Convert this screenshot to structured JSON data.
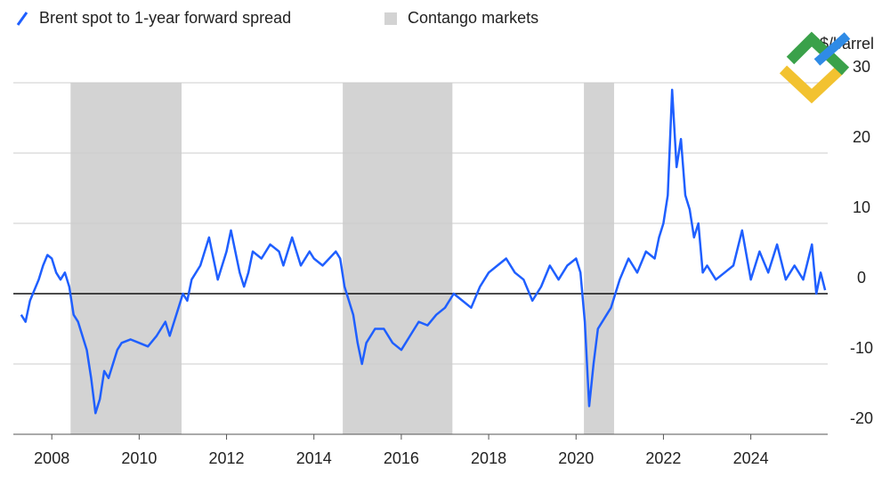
{
  "chart_data": {
    "type": "line",
    "y_label": "$/barrel",
    "xlim": [
      2007.12,
      2025.76
    ],
    "xticks": [
      2008,
      2010,
      2012,
      2014,
      2016,
      2018,
      2020,
      2022,
      2024
    ],
    "ylim": [
      -20,
      30
    ],
    "yticks": [
      -20,
      -10,
      0,
      10,
      20,
      30
    ],
    "grid": true,
    "shaded_regions": {
      "name": "Contango markets",
      "color": "#d3d3d3",
      "ranges": [
        [
          2008.43,
          2010.97
        ],
        [
          2014.66,
          2017.17
        ],
        [
          2020.18,
          2020.87
        ]
      ]
    },
    "series": [
      {
        "name": "Brent spot to 1-year forward spread",
        "color": "#1f5fff",
        "x": [
          2007.3,
          2007.4,
          2007.5,
          2007.7,
          2007.8,
          2007.9,
          2008.0,
          2008.1,
          2008.2,
          2008.3,
          2008.4,
          2008.5,
          2008.6,
          2008.7,
          2008.8,
          2008.9,
          2009.0,
          2009.1,
          2009.2,
          2009.3,
          2009.4,
          2009.5,
          2009.6,
          2009.8,
          2010.0,
          2010.2,
          2010.4,
          2010.6,
          2010.7,
          2010.8,
          2010.9,
          2011.0,
          2011.1,
          2011.2,
          2011.4,
          2011.6,
          2011.7,
          2011.8,
          2011.9,
          2012.0,
          2012.1,
          2012.2,
          2012.3,
          2012.4,
          2012.5,
          2012.6,
          2012.8,
          2013.0,
          2013.2,
          2013.3,
          2013.5,
          2013.7,
          2013.9,
          2014.0,
          2014.2,
          2014.5,
          2014.6,
          2014.7,
          2014.8,
          2014.9,
          2015.0,
          2015.1,
          2015.2,
          2015.4,
          2015.6,
          2015.8,
          2016.0,
          2016.2,
          2016.4,
          2016.6,
          2016.8,
          2017.0,
          2017.2,
          2017.4,
          2017.6,
          2017.8,
          2018.0,
          2018.2,
          2018.4,
          2018.6,
          2018.8,
          2019.0,
          2019.2,
          2019.4,
          2019.6,
          2019.8,
          2020.0,
          2020.1,
          2020.2,
          2020.3,
          2020.4,
          2020.5,
          2020.7,
          2020.8,
          2020.9,
          2021.0,
          2021.2,
          2021.4,
          2021.6,
          2021.8,
          2021.9,
          2022.0,
          2022.1,
          2022.2,
          2022.3,
          2022.4,
          2022.5,
          2022.6,
          2022.7,
          2022.8,
          2022.9,
          2023.0,
          2023.2,
          2023.4,
          2023.6,
          2023.8,
          2024.0,
          2024.2,
          2024.4,
          2024.6,
          2024.8,
          2025.0,
          2025.2,
          2025.4,
          2025.5,
          2025.6,
          2025.7
        ],
        "values": [
          -3,
          -4,
          -1,
          2,
          4,
          5.5,
          5,
          3,
          2,
          3,
          1,
          -3,
          -4,
          -6,
          -8,
          -12,
          -17,
          -15,
          -11,
          -12,
          -10,
          -8,
          -7,
          -6.5,
          -7,
          -7.5,
          -6,
          -4,
          -6,
          -4,
          -2,
          0,
          -1,
          2,
          4,
          8,
          5,
          2,
          4,
          6,
          9,
          6,
          3,
          1,
          3,
          6,
          5,
          7,
          6,
          4,
          8,
          4,
          6,
          5,
          4,
          6,
          5,
          1,
          -1,
          -3,
          -7,
          -10,
          -7,
          -5,
          -5,
          -7,
          -8,
          -6,
          -4,
          -4.5,
          -3,
          -2,
          0,
          -1,
          -2,
          1,
          3,
          4,
          5,
          3,
          2,
          -1,
          1,
          4,
          2,
          4,
          5,
          3,
          -4,
          -16,
          -10,
          -5,
          -3,
          -2,
          0,
          2,
          5,
          3,
          6,
          5,
          8,
          10,
          14,
          29,
          18,
          22,
          14,
          12,
          8,
          10,
          3,
          4,
          2,
          3,
          4,
          9,
          2,
          6,
          3,
          7,
          2,
          4,
          2,
          7,
          0,
          3,
          0.5
        ]
      }
    ]
  }
}
